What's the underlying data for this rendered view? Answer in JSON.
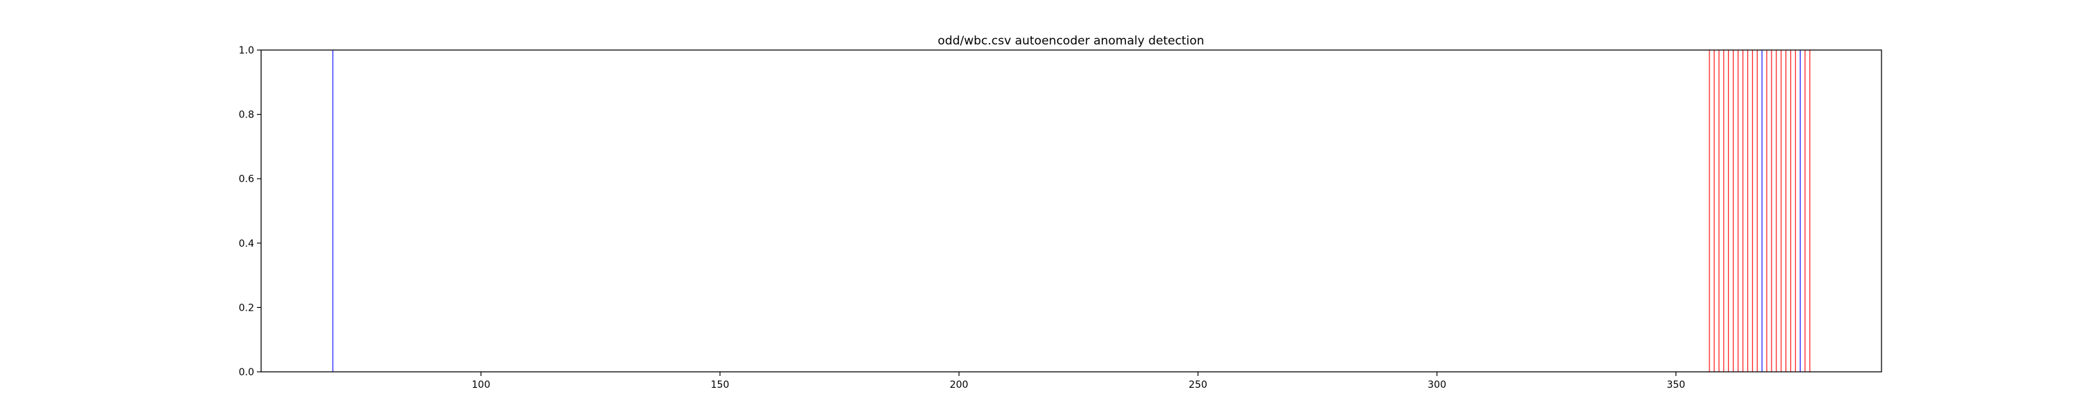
{
  "chart_data": {
    "type": "line",
    "title": "odd/wbc.csv autoencoder anomaly detection",
    "xlabel": "",
    "ylabel": "",
    "xlim": [
      54,
      393
    ],
    "ylim": [
      0,
      1
    ],
    "xticks": [
      100,
      150,
      200,
      250,
      300,
      350
    ],
    "yticks": [
      0.0,
      0.2,
      0.4,
      0.6,
      0.8,
      1.0
    ],
    "ytick_labels": [
      "0.0",
      "0.2",
      "0.4",
      "0.6",
      "0.8",
      "1.0"
    ],
    "grid": false,
    "series": [
      {
        "color": "#ff0000",
        "style": "vertical-lines",
        "x": [
          357,
          358,
          359,
          360,
          361,
          362,
          363,
          364,
          365,
          366,
          367,
          369,
          370,
          371,
          372,
          373,
          374,
          375,
          377,
          378
        ]
      },
      {
        "color": "#0000ff",
        "style": "vertical-lines",
        "x": [
          69,
          368,
          376
        ]
      }
    ]
  }
}
